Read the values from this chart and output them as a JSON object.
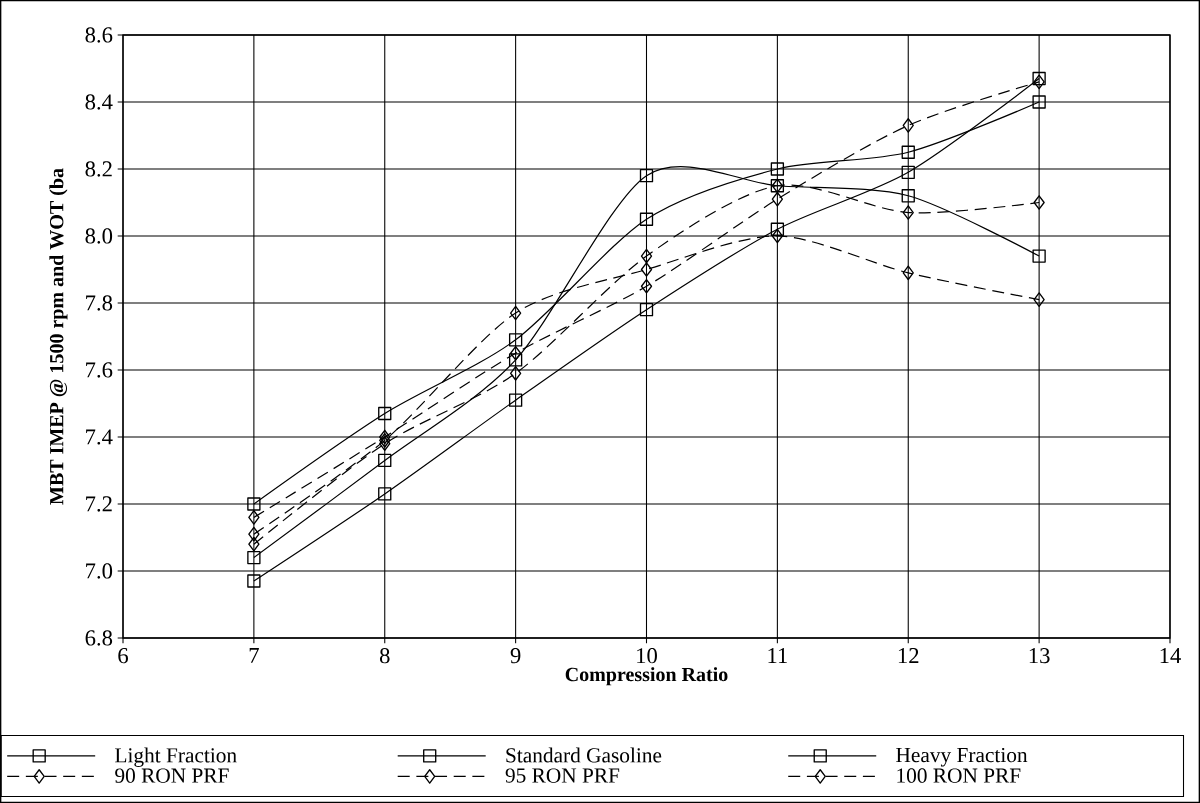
{
  "chart_data": {
    "type": "line",
    "xlabel": "Compression Ratio",
    "ylabel": "MBT IMEP @ 1500 rpm and WOT (ba",
    "x": [
      7,
      8,
      9,
      10,
      11,
      12,
      13
    ],
    "series": [
      {
        "name": "Light Fraction",
        "color": "#000000",
        "marker": "square",
        "line_style": "solid",
        "values": [
          7.2,
          7.47,
          7.69,
          8.05,
          8.2,
          8.25,
          8.4
        ]
      },
      {
        "name": "Standard Gasoline",
        "color": "#000000",
        "marker": "square",
        "line_style": "solid",
        "values": [
          7.04,
          7.33,
          7.63,
          8.18,
          8.15,
          8.12,
          7.94
        ]
      },
      {
        "name": "Heavy Fraction",
        "color": "#000000",
        "marker": "square",
        "line_style": "solid",
        "values": [
          6.97,
          7.23,
          7.51,
          7.78,
          8.02,
          8.19,
          8.47
        ]
      },
      {
        "name": "90 RON PRF",
        "color": "#000000",
        "marker": "diamond",
        "line_style": "dashed",
        "values": [
          7.11,
          7.39,
          7.77,
          7.9,
          8.0,
          7.89,
          7.81
        ]
      },
      {
        "name": "95 RON PRF",
        "color": "#000000",
        "marker": "diamond",
        "line_style": "dashed",
        "values": [
          7.08,
          7.38,
          7.59,
          7.94,
          8.15,
          8.07,
          8.1
        ]
      },
      {
        "name": "100 RON PRF",
        "color": "#000000",
        "marker": "diamond",
        "line_style": "dashed",
        "values": [
          7.16,
          7.4,
          7.65,
          7.85,
          8.11,
          8.33,
          8.46
        ]
      }
    ],
    "xlim": [
      6,
      14
    ],
    "ylim": [
      6.8,
      8.6
    ],
    "xticks": [
      6,
      7,
      8,
      9,
      10,
      11,
      12,
      13,
      14
    ],
    "yticks": [
      6.8,
      {
        "value": 7,
        "label": "7.0"
      },
      7.2,
      7.4,
      7.6,
      7.8,
      {
        "value": 8,
        "label": "8.0"
      },
      8.2,
      8.4,
      8.6
    ],
    "grid": true,
    "legend": "bottom"
  }
}
